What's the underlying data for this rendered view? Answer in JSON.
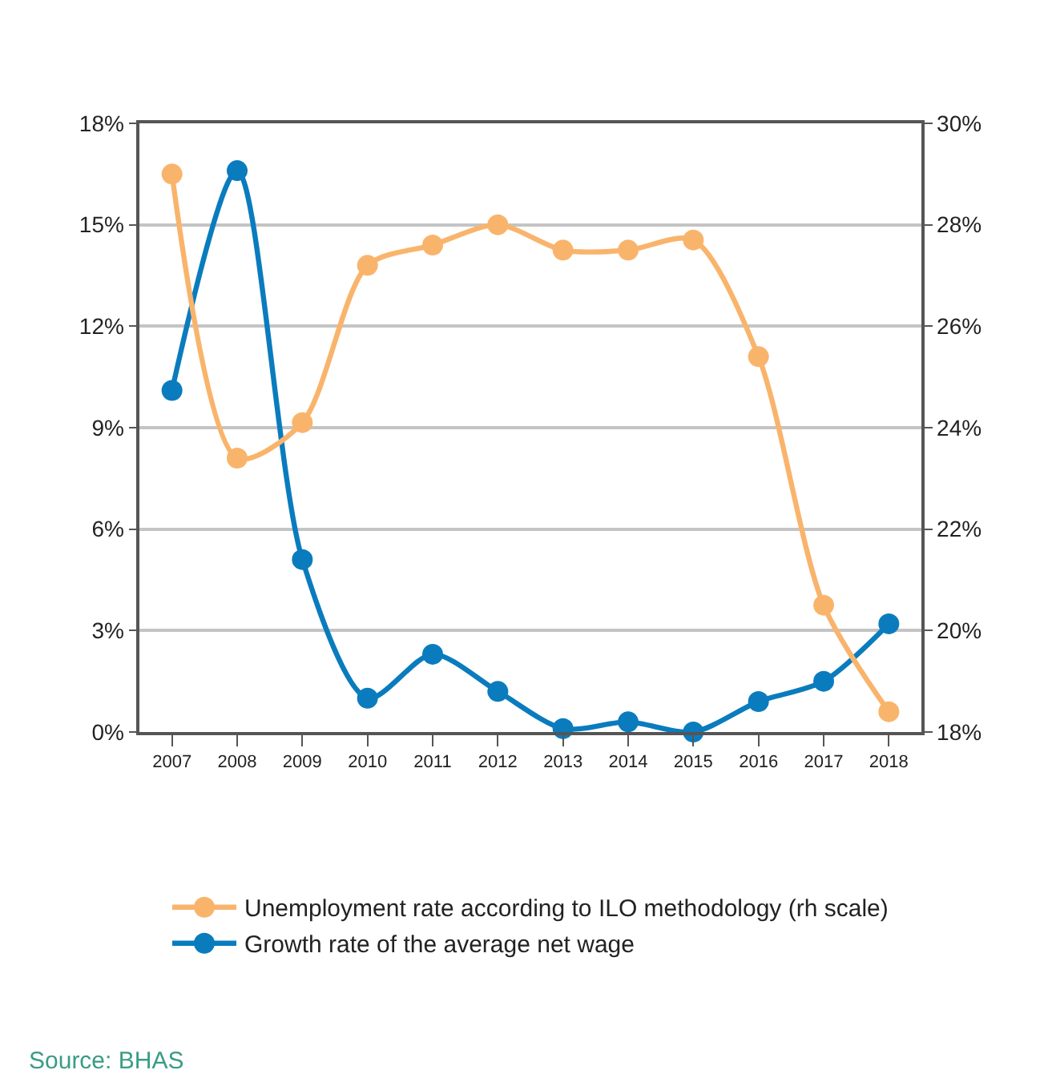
{
  "chart_data": {
    "type": "line",
    "categories": [
      "2007",
      "2008",
      "2009",
      "2010",
      "2011",
      "2012",
      "2013",
      "2014",
      "2015",
      "2016",
      "2017",
      "2018"
    ],
    "series": [
      {
        "name": "Unemployment rate according to ILO methodology (rh scale)",
        "color": "#f9b46c",
        "axis": "y2",
        "values": [
          29.0,
          23.4,
          24.1,
          27.2,
          27.6,
          28.0,
          27.5,
          27.5,
          27.7,
          25.4,
          20.5,
          18.4
        ]
      },
      {
        "name": "Growth rate of the average net wage",
        "color": "#0a7cbe",
        "axis": "y",
        "values": [
          10.1,
          16.6,
          5.1,
          1.0,
          2.3,
          1.2,
          0.1,
          0.3,
          0.0,
          0.9,
          1.5,
          3.2
        ]
      }
    ],
    "ylim": [
      0,
      18
    ],
    "yticks": [
      {
        "value": 0,
        "label": "0%"
      },
      {
        "value": 3,
        "label": "3%"
      },
      {
        "value": 6,
        "label": "6%"
      },
      {
        "value": 9,
        "label": "9%"
      },
      {
        "value": 12,
        "label": "12%"
      },
      {
        "value": 15,
        "label": "15%"
      },
      {
        "value": 18,
        "label": "18%"
      }
    ],
    "y2lim": [
      18,
      30
    ],
    "y2ticks": [
      {
        "value": 18,
        "label": "18%"
      },
      {
        "value": 20,
        "label": "20%"
      },
      {
        "value": 22,
        "label": "22%"
      },
      {
        "value": 24,
        "label": "24%"
      },
      {
        "value": 26,
        "label": "26%"
      },
      {
        "value": 28,
        "label": "28%"
      },
      {
        "value": 30,
        "label": "30%"
      }
    ],
    "grid": "y",
    "legend": "bottom",
    "marker": "circle",
    "line_style": "solid",
    "annotations": [
      "Source: BHAS"
    ]
  }
}
